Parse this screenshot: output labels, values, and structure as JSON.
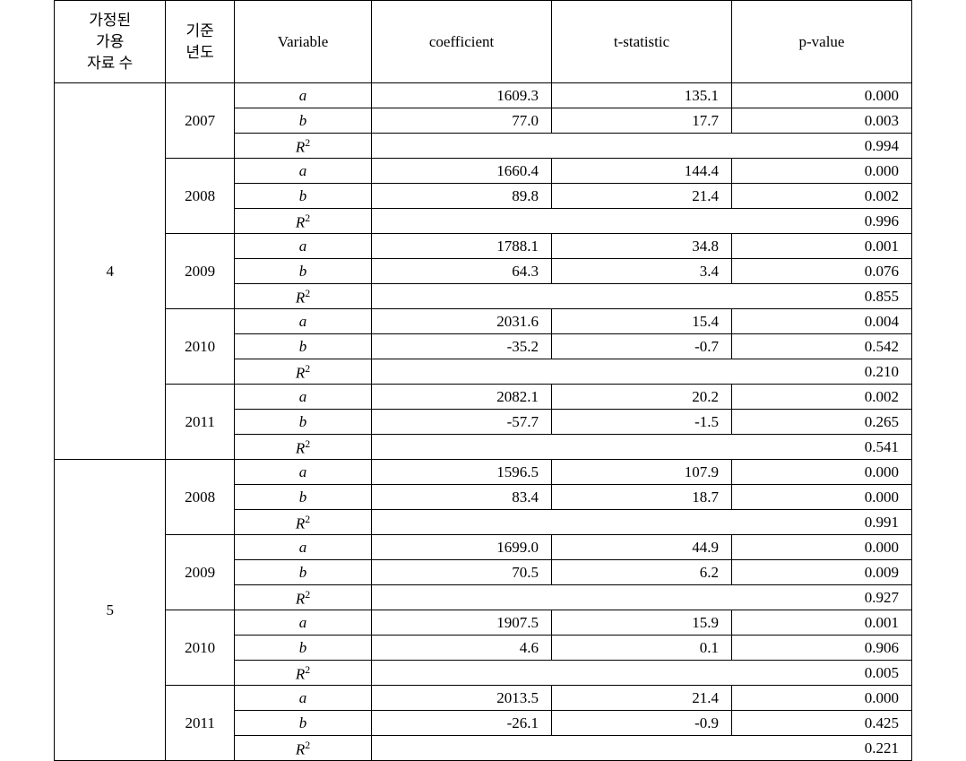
{
  "header": {
    "col1_line1": "가정된",
    "col1_line2": "가용",
    "col1_line3": "자료 수",
    "col2_line1": "기준",
    "col2_line2": "년도",
    "col3": "Variable",
    "col4": "coefficient",
    "col5": "t-statistic",
    "col6": "p-value"
  },
  "vars": {
    "a": "a",
    "b": "b",
    "R": "R",
    "sq": "2"
  },
  "groups": [
    {
      "n": "4",
      "years": [
        {
          "y": "2007",
          "a_coef": "1609.3",
          "a_t": "135.1",
          "a_p": "0.000",
          "b_coef": "77.0",
          "b_t": "17.7",
          "b_p": "0.003",
          "r2": "0.994"
        },
        {
          "y": "2008",
          "a_coef": "1660.4",
          "a_t": "144.4",
          "a_p": "0.000",
          "b_coef": "89.8",
          "b_t": "21.4",
          "b_p": "0.002",
          "r2": "0.996"
        },
        {
          "y": "2009",
          "a_coef": "1788.1",
          "a_t": "34.8",
          "a_p": "0.001",
          "b_coef": "64.3",
          "b_t": "3.4",
          "b_p": "0.076",
          "r2": "0.855"
        },
        {
          "y": "2010",
          "a_coef": "2031.6",
          "a_t": "15.4",
          "a_p": "0.004",
          "b_coef": "-35.2",
          "b_t": "-0.7",
          "b_p": "0.542",
          "r2": "0.210"
        },
        {
          "y": "2011",
          "a_coef": "2082.1",
          "a_t": "20.2",
          "a_p": "0.002",
          "b_coef": "-57.7",
          "b_t": "-1.5",
          "b_p": "0.265",
          "r2": "0.541"
        }
      ]
    },
    {
      "n": "5",
      "years": [
        {
          "y": "2008",
          "a_coef": "1596.5",
          "a_t": "107.9",
          "a_p": "0.000",
          "b_coef": "83.4",
          "b_t": "18.7",
          "b_p": "0.000",
          "r2": "0.991"
        },
        {
          "y": "2009",
          "a_coef": "1699.0",
          "a_t": "44.9",
          "a_p": "0.000",
          "b_coef": "70.5",
          "b_t": "6.2",
          "b_p": "0.009",
          "r2": "0.927"
        },
        {
          "y": "2010",
          "a_coef": "1907.5",
          "a_t": "15.9",
          "a_p": "0.001",
          "b_coef": "4.6",
          "b_t": "0.1",
          "b_p": "0.906",
          "r2": "0.005"
        },
        {
          "y": "2011",
          "a_coef": "2013.5",
          "a_t": "21.4",
          "a_p": "0.000",
          "b_coef": "-26.1",
          "b_t": "-0.9",
          "b_p": "0.425",
          "r2": "0.221"
        }
      ]
    }
  ]
}
